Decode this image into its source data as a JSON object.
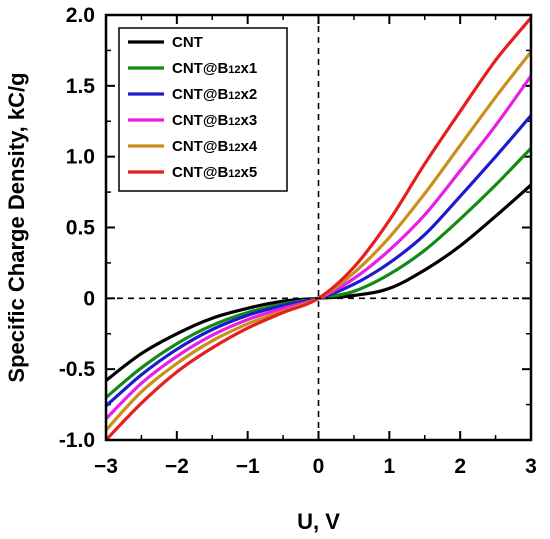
{
  "chart_data": {
    "type": "line",
    "xlabel": "U, V",
    "ylabel": "Specific Charge Density, kC/g",
    "xlim": [
      -3,
      3
    ],
    "ylim": [
      -1.0,
      2.0
    ],
    "xticks": [
      -3,
      -2,
      -1,
      0,
      1,
      2,
      3
    ],
    "xtick_labels": [
      "−3",
      "−2",
      "−1",
      "0",
      "1",
      "2",
      "3"
    ],
    "yticks": [
      -1.0,
      -0.5,
      0,
      0.5,
      1.0,
      1.5,
      2.0
    ],
    "ytick_labels": [
      "-1.0",
      "-0.5",
      "0",
      "0.5",
      "1.0",
      "1.5",
      "2.0"
    ],
    "grid": false,
    "reference_lines": [
      "x = 0 (dashed)",
      "y = 0 (dashed)"
    ],
    "legend_position": "top-left",
    "x": [
      -3,
      -2.5,
      -2,
      -1.5,
      -1,
      -0.5,
      0,
      0.5,
      1,
      1.5,
      2,
      2.5,
      3
    ],
    "series": [
      {
        "name": "CNT",
        "color": "#000000",
        "values": [
          -0.58,
          -0.39,
          -0.25,
          -0.14,
          -0.07,
          -0.02,
          0.0,
          0.02,
          0.07,
          0.2,
          0.37,
          0.58,
          0.8
        ]
      },
      {
        "name": "CNT@B12x1",
        "color": "#138a13",
        "values": [
          -0.7,
          -0.49,
          -0.32,
          -0.19,
          -0.1,
          -0.04,
          0.0,
          0.05,
          0.17,
          0.34,
          0.56,
          0.8,
          1.06
        ]
      },
      {
        "name": "CNT@B12x2",
        "color": "#1c1ccf",
        "values": [
          -0.76,
          -0.54,
          -0.36,
          -0.22,
          -0.12,
          -0.05,
          0.0,
          0.1,
          0.25,
          0.45,
          0.72,
          1.0,
          1.29
        ]
      },
      {
        "name": "CNT@B12x3",
        "color": "#e61ee6",
        "values": [
          -0.85,
          -0.6,
          -0.41,
          -0.26,
          -0.15,
          -0.07,
          0.0,
          0.14,
          0.34,
          0.59,
          0.9,
          1.22,
          1.57
        ]
      },
      {
        "name": "CNT@B12x4",
        "color": "#c8901a",
        "values": [
          -0.93,
          -0.66,
          -0.46,
          -0.3,
          -0.18,
          -0.09,
          0.0,
          0.18,
          0.43,
          0.74,
          1.08,
          1.42,
          1.74
        ]
      },
      {
        "name": "CNT@B12x5",
        "color": "#e61e1e",
        "values": [
          -1.0,
          -0.74,
          -0.52,
          -0.35,
          -0.21,
          -0.1,
          0.0,
          0.22,
          0.55,
          0.95,
          1.32,
          1.68,
          1.98
        ]
      }
    ]
  }
}
